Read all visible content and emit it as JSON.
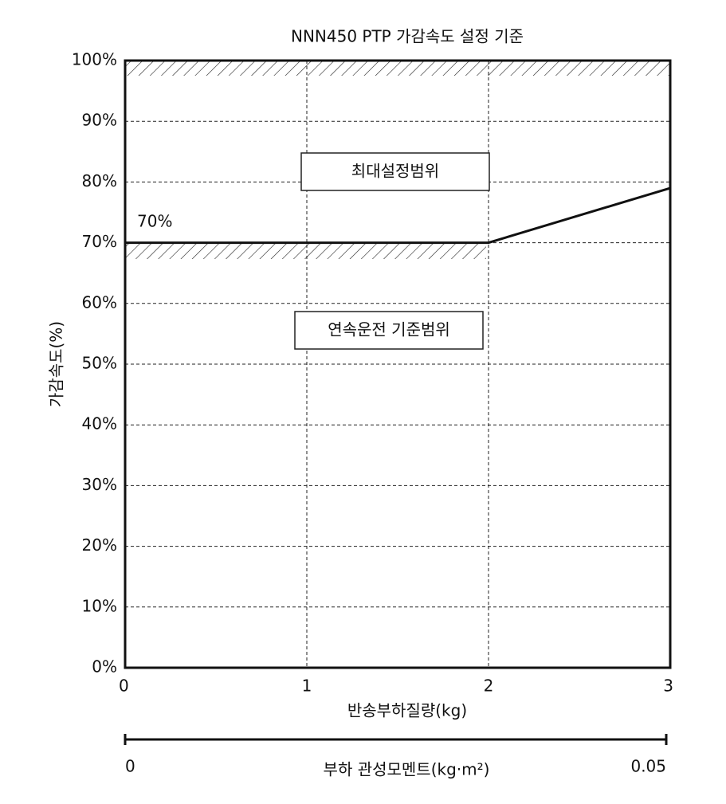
{
  "chart_data": {
    "type": "line",
    "title": "NNN450 PTP 가감속도 설정 기준",
    "xlabel": "반송부하질량(kg)",
    "ylabel": "가감속도(%)",
    "x": [
      0,
      2,
      3
    ],
    "series": [
      {
        "color": "#111111",
        "values": [
          70,
          70,
          79
        ]
      }
    ],
    "xlim": [
      0,
      3
    ],
    "xticks": [
      0,
      1,
      2,
      3
    ],
    "ylim": [
      0,
      100
    ],
    "yticks": [
      {
        "value": 0,
        "label": "0%"
      },
      {
        "value": 10,
        "label": "10%"
      },
      {
        "value": 20,
        "label": "20%"
      },
      {
        "value": 30,
        "label": "30%"
      },
      {
        "value": 40,
        "label": "40%"
      },
      {
        "value": 50,
        "label": "50%"
      },
      {
        "value": 60,
        "label": "60%"
      },
      {
        "value": 70,
        "label": "70%"
      },
      {
        "value": 80,
        "label": "80%"
      },
      {
        "value": 90,
        "label": "90%"
      },
      {
        "value": 100,
        "label": "100%"
      }
    ],
    "grid": true,
    "x2label": "부하 관성모멘트(kg·m²)",
    "x2lim": [
      0,
      0.05
    ],
    "x2ticks": [
      0,
      0.05
    ],
    "annotations": [
      {
        "text": "70%"
      },
      {
        "text": "최대설정범위"
      },
      {
        "text": "연속운전 기준범위"
      }
    ]
  }
}
